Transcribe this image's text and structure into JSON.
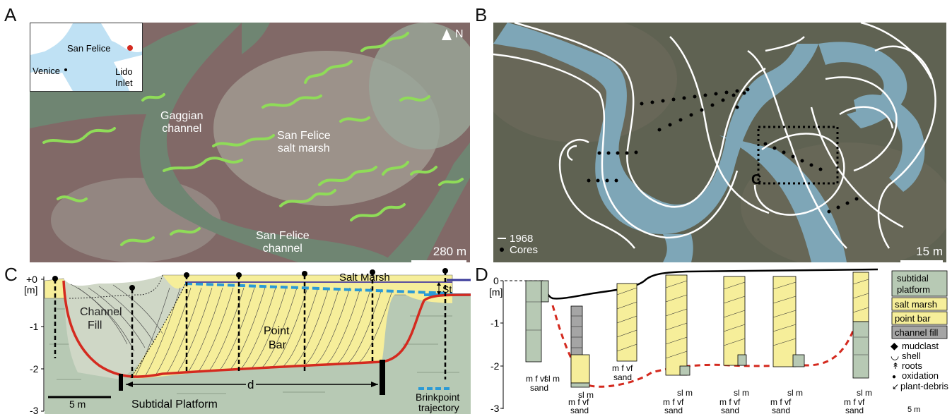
{
  "panels": {
    "a": "A",
    "b": "B",
    "c": "C",
    "d": "D"
  },
  "panelA": {
    "inset": {
      "place1": "San Felice",
      "place2": "Venice",
      "place3": "Lido",
      "place4": "Inlet"
    },
    "north": "N",
    "channel1_l1": "Gaggian",
    "channel1_l2": "channel",
    "marsh_l1": "San Felice",
    "marsh_l2": "salt marsh",
    "channel2_l1": "San Felice",
    "channel2_l2": "channel",
    "scale": "280 m"
  },
  "panelB": {
    "legend_line": "1968",
    "legend_dot": "Cores",
    "box_label": "C",
    "scale": "15 m"
  },
  "panelC": {
    "y_ticks": [
      "+0",
      "-1",
      "-2",
      "-3"
    ],
    "y_unit": "[m]",
    "salt_marsh": "Salt Marsh",
    "st_label": "St",
    "channel_l1": "Channel",
    "channel_l2": "Fill",
    "pointbar_l1": "Point",
    "pointbar_l2": "Bar",
    "d_label": "d",
    "scale": "5 m",
    "subtidal": "Subtidal Platform",
    "brink_l1": "Brinkpoint",
    "brink_l2": "trajectory"
  },
  "panelD": {
    "y_ticks": [
      "0",
      "-1",
      "-2",
      "-3"
    ],
    "y_unit": "[m]",
    "grain": "m f vf",
    "grain2": "sl m",
    "sand": "sand",
    "legend": {
      "subtidal_l1": "subtidal",
      "subtidal_l2": "platform",
      "salt_marsh": "salt marsh",
      "point_bar": "point bar",
      "channel_fill": "channel fill",
      "mudclast": "mudclast",
      "shell": "shell",
      "roots": "roots",
      "oxidation": "oxidation",
      "plant": "plant-debris",
      "scale": "5 m"
    }
  },
  "colors": {
    "marsh_yellow": "#f6ee9a",
    "platform_green": "#b7c9b4",
    "channel_red": "#d42a1f",
    "brink_blue": "#2a9ad6",
    "creek_green": "#8fdc58"
  }
}
